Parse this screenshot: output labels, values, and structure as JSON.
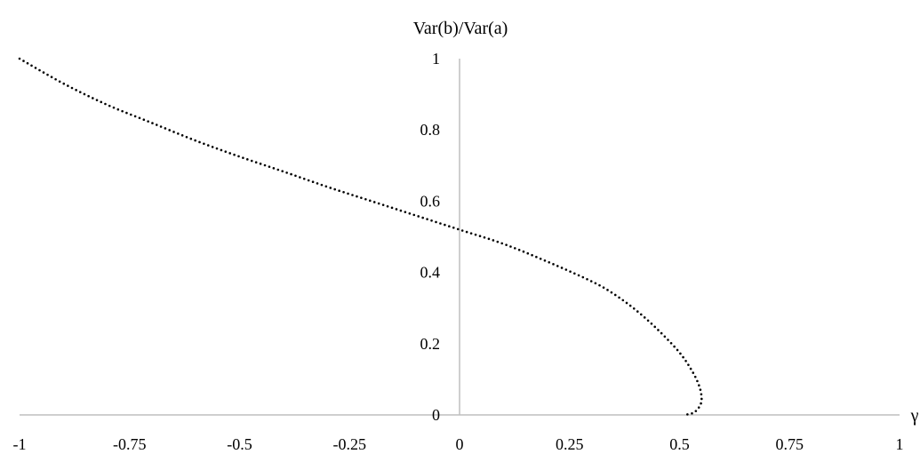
{
  "chart_data": {
    "type": "line",
    "title": "",
    "xlabel": "γ",
    "ylabel": "Var(b)/Var(a)",
    "xlim": [
      -1,
      1
    ],
    "ylim": [
      0,
      1
    ],
    "x_ticks": [
      -1,
      -0.75,
      -0.5,
      -0.25,
      0,
      0.25,
      0.5,
      0.75,
      1
    ],
    "x_tick_labels": [
      "-1",
      "-0.75",
      "-0.5",
      "-0.25",
      "0",
      "0.25",
      "0.5",
      "0.75",
      "1"
    ],
    "y_ticks": [
      0,
      0.2,
      0.4,
      0.6,
      0.8,
      1
    ],
    "y_tick_labels": [
      "0",
      "0.2",
      "0.4",
      "0.6",
      "0.8",
      "1"
    ],
    "grid": false,
    "line_style": "dotted",
    "series": [
      {
        "x": [
          -1,
          -0.9,
          -0.8,
          -0.7,
          -0.6,
          -0.5,
          -0.4,
          -0.3,
          -0.2,
          -0.1,
          0,
          0.1,
          0.2,
          0.3,
          0.35,
          0.4,
          0.45,
          0.5,
          0.53,
          0.545,
          0.55,
          0.548,
          0.54,
          0.53,
          0.51
        ],
        "y": [
          1.0,
          0.93,
          0.87,
          0.82,
          0.77,
          0.725,
          0.683,
          0.64,
          0.6,
          0.56,
          0.52,
          0.48,
          0.43,
          0.375,
          0.34,
          0.295,
          0.24,
          0.175,
          0.12,
          0.08,
          0.05,
          0.03,
          0.015,
          0.005,
          0.0
        ]
      }
    ]
  }
}
